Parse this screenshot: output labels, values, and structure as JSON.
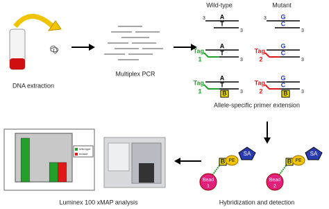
{
  "labels": {
    "dna_extraction": "DNA extraction",
    "multiplex_pcr": "Multiplex PCR",
    "primer_extension": "Allele-specific primer extension",
    "hybridization": "Hybridization and detection",
    "luminex": "Luminex 100 xMAP analysis"
  },
  "columns": {
    "wild_type": "Wild-type",
    "mutant": "Mutant"
  },
  "wild_type": {
    "top": "A",
    "bottom": "T",
    "tag": "Tag",
    "tag_id": "1"
  },
  "mutant": {
    "top": "G",
    "bottom": "C",
    "tag": "Tag",
    "tag_id": "2"
  },
  "strand_end": "3",
  "biotin": "B",
  "pe": "PE",
  "sa": "SA",
  "bead": "Bead",
  "chart_data": {
    "type": "bar",
    "categories": [
      null,
      null
    ],
    "series": [
      {
        "name": "Wild type",
        "color": "#22a02a",
        "values": [
          90,
          40
        ]
      },
      {
        "name": "mutant",
        "color": "#e01818",
        "values": [
          null,
          40
        ]
      }
    ],
    "ylim": [
      0,
      100
    ]
  }
}
